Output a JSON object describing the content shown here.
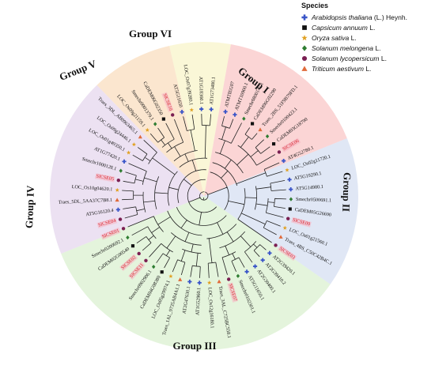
{
  "legend": {
    "title": "Species",
    "items": [
      {
        "italic": "Arabidopsis thaliana",
        "rest": " (L.) Heynh.",
        "symbol": "cross",
        "color": "#3a55c8"
      },
      {
        "italic": "Capsicum annuum",
        "rest": " L.",
        "symbol": "square",
        "color": "#111111"
      },
      {
        "italic": "Oryza sativa",
        "rest": " L.",
        "symbol": "star",
        "color": "#e0a020"
      },
      {
        "italic": "Solanum melongena",
        "rest": " L.",
        "symbol": "diamond",
        "color": "#2f7d32"
      },
      {
        "italic": "Solanum lycopersicum",
        "rest": " L.",
        "symbol": "circle",
        "color": "#7a1f52"
      },
      {
        "italic": "Triticum aestivum",
        "rest": " L.",
        "symbol": "triangle",
        "color": "#e06a3a"
      }
    ]
  },
  "groups": [
    {
      "label": "Group I",
      "color": "#f7b2b2",
      "from": -80,
      "to": -22
    },
    {
      "label": "Group II",
      "color": "#c7d3ec",
      "from": -22,
      "to": 35
    },
    {
      "label": "Group III",
      "color": "#cdebc0",
      "from": 35,
      "to": 158
    },
    {
      "label": "Group IV",
      "color": "#dcc8e8",
      "from": 158,
      "to": 226
    },
    {
      "label": "Group V",
      "color": "#f8d2a8",
      "from": 226,
      "to": 257
    },
    {
      "label": "Group VI",
      "color": "#f6f1b6",
      "from": 257,
      "to": 280
    }
  ],
  "leaves": [
    {
      "label": "ATMTIEG07",
      "species": "cross",
      "red": false
    },
    {
      "label": "ATMT10900.1",
      "species": "cross",
      "red": false
    },
    {
      "label": "Smechr0800147.1",
      "species": "diamond",
      "red": false
    },
    {
      "label": "CaDEM06G02290",
      "species": "square",
      "red": false
    },
    {
      "label": "Traes_2BS_51F9B79FD.1",
      "species": "triangle",
      "red": false
    },
    {
      "label": "Smechr0100423.1",
      "species": "diamond",
      "red": false
    },
    {
      "label": "CaDEM03G18790",
      "species": "square",
      "red": false
    },
    {
      "label": "SlCSE06",
      "species": "circle",
      "red": true
    },
    {
      "label": "AT4G52780.1",
      "species": "cross",
      "red": false
    },
    {
      "label": "LOC_Os02g11720.1",
      "species": "star",
      "red": false
    },
    {
      "label": "AT5G19290.1",
      "species": "cross",
      "red": false
    },
    {
      "label": "AT5G14980.1",
      "species": "cross",
      "red": false
    },
    {
      "label": "Smechr0500691.1",
      "species": "diamond",
      "red": false
    },
    {
      "label": "CaDEM05G26690",
      "species": "square",
      "red": false
    },
    {
      "label": "SlCSE09",
      "species": "circle",
      "red": true
    },
    {
      "label": "LOC_Os01g21560.1",
      "species": "star",
      "red": false
    },
    {
      "label": "Traes_4BS_C50C42B4C.1",
      "species": "triangle",
      "red": false
    },
    {
      "label": "SlCSE03",
      "species": "circle",
      "red": true
    },
    {
      "label": "AT2G39420.1",
      "species": "cross",
      "red": false
    },
    {
      "label": "AT2G39410.2",
      "species": "cross",
      "red": false
    },
    {
      "label": "AT2G39400.1",
      "species": "cross",
      "red": false
    },
    {
      "label": "AT5G11650.1",
      "species": "cross",
      "red": false
    },
    {
      "label": "Smechr0102301.1",
      "species": "diamond",
      "red": false
    },
    {
      "label": "SlCSE07",
      "species": "circle",
      "red": true
    },
    {
      "label": "Traes_3AL_C725BC558.1",
      "species": "triangle",
      "red": false
    },
    {
      "label": "LOC_Os12g16180.1",
      "species": "star",
      "red": false
    },
    {
      "label": "AT1G52960.1",
      "species": "cross",
      "red": false
    },
    {
      "label": "AT2G47630.1",
      "species": "cross",
      "red": false
    },
    {
      "label": "Traes_1AL_9735AB4A1.1",
      "species": "triangle",
      "red": false
    },
    {
      "label": "LOC_Os05g29974.1",
      "species": "star",
      "red": false
    },
    {
      "label": "CaDEM04G08380",
      "species": "square",
      "red": false
    },
    {
      "label": "Smechr0902906.1",
      "species": "diamond",
      "red": false
    },
    {
      "label": "SlCSE11",
      "species": "circle",
      "red": true
    },
    {
      "label": "SlCSE02",
      "species": "circle",
      "red": true
    },
    {
      "label": "CaDEM02G00540",
      "species": "square",
      "red": false
    },
    {
      "label": "Smechr0200692.1",
      "species": "diamond",
      "red": false
    },
    {
      "label": "SlCSE01",
      "species": "circle",
      "red": true
    },
    {
      "label": "SlCSE04",
      "species": "circle",
      "red": true
    },
    {
      "label": "AT5G16120.4",
      "species": "cross",
      "red": false
    },
    {
      "label": "Traes_5DL_5AA37C7B8.1",
      "species": "triangle",
      "red": false
    },
    {
      "label": "LOC_Os10g04620.1",
      "species": "star",
      "red": false
    },
    {
      "label": "SlCSE05",
      "species": "circle",
      "red": true
    },
    {
      "label": "Smechr1000128.1",
      "species": "diamond",
      "red": false
    },
    {
      "label": "AT1G77420.1",
      "species": "cross",
      "red": false
    },
    {
      "label": "LOC_Os01g49350.1",
      "species": "star",
      "red": false
    },
    {
      "label": "LOC_Os09g24446.1",
      "species": "star",
      "red": false
    },
    {
      "label": "Traes_3DL_AB0963465.1",
      "species": "triangle",
      "red": false
    },
    {
      "label": "LOC_Os09g21159.1",
      "species": "star",
      "red": false
    },
    {
      "label": "Smechr0001379.1",
      "species": "diamond",
      "red": false
    },
    {
      "label": "CaDEM06G02350",
      "species": "square",
      "red": false
    },
    {
      "label": "SlCSE10",
      "species": "circle",
      "red": true
    },
    {
      "label": "AT5G11650",
      "species": "cross",
      "red": false
    },
    {
      "label": "LOC_Os07g39280.1",
      "species": "star",
      "red": false
    },
    {
      "label": "AT1G18360.1",
      "species": "cross",
      "red": false
    },
    {
      "label": "AT1G73480.1",
      "species": "cross",
      "red": false
    }
  ]
}
